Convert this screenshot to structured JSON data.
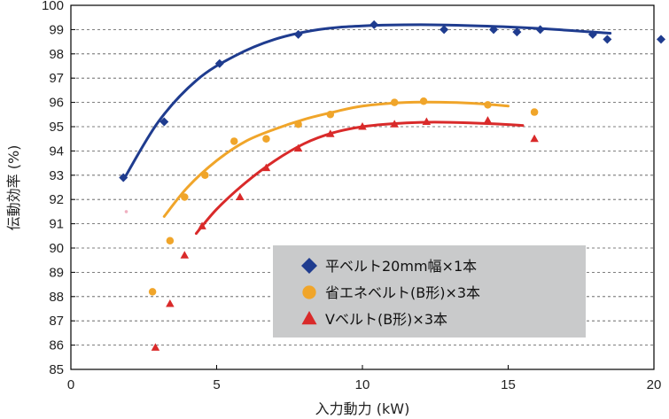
{
  "chart_data": {
    "type": "scatter",
    "title": "",
    "xlabel": "入力動力 (kW)",
    "ylabel": "伝動効率 (%)",
    "xlim": [
      0,
      20
    ],
    "ylim": [
      85,
      100
    ],
    "xticks": [
      "0",
      "5",
      "10",
      "15",
      "20"
    ],
    "yticks": [
      "85",
      "86",
      "87",
      "88",
      "89",
      "90",
      "91",
      "92",
      "93",
      "94",
      "95",
      "96",
      "97",
      "98",
      "99",
      "100"
    ],
    "grid": "horizontal dashed",
    "legend_position": "center-right",
    "series": [
      {
        "name": "平ベルト20mm幅×1本",
        "marker": "diamond",
        "color": "#1f3c8f",
        "points": [
          [
            1.8,
            92.9
          ],
          [
            3.2,
            95.2
          ],
          [
            5.1,
            97.6
          ],
          [
            7.8,
            98.8
          ],
          [
            10.4,
            99.2
          ],
          [
            12.8,
            99.0
          ],
          [
            14.5,
            99.0
          ],
          [
            15.3,
            98.9
          ],
          [
            16.1,
            99.0
          ],
          [
            17.9,
            98.8
          ],
          [
            18.4,
            98.6
          ],
          [
            20.3,
            98.6
          ]
        ],
        "fit": [
          [
            1.8,
            92.8
          ],
          [
            3.0,
            95.2
          ],
          [
            4.3,
            96.9
          ],
          [
            5.6,
            97.9
          ],
          [
            7.0,
            98.6
          ],
          [
            8.5,
            99.0
          ],
          [
            10.0,
            99.15
          ],
          [
            12.0,
            99.2
          ],
          [
            14.0,
            99.15
          ],
          [
            16.0,
            99.05
          ],
          [
            18.5,
            98.85
          ]
        ]
      },
      {
        "name": "省エネベルト(B形)×3本",
        "marker": "circle",
        "color": "#f0a52a",
        "points": [
          [
            2.8,
            88.2
          ],
          [
            3.4,
            90.3
          ],
          [
            3.9,
            92.1
          ],
          [
            4.6,
            93.0
          ],
          [
            5.6,
            94.4
          ],
          [
            6.7,
            94.5
          ],
          [
            7.8,
            95.1
          ],
          [
            8.9,
            95.5
          ],
          [
            11.1,
            96.0
          ],
          [
            12.1,
            96.05
          ],
          [
            14.3,
            95.9
          ],
          [
            15.9,
            95.6
          ]
        ],
        "fit": [
          [
            3.2,
            91.3
          ],
          [
            4.0,
            92.5
          ],
          [
            5.0,
            93.6
          ],
          [
            6.0,
            94.4
          ],
          [
            7.0,
            94.9
          ],
          [
            8.0,
            95.3
          ],
          [
            9.0,
            95.6
          ],
          [
            10.0,
            95.85
          ],
          [
            11.5,
            96.0
          ],
          [
            13.0,
            96.0
          ],
          [
            14.0,
            95.95
          ],
          [
            15.0,
            95.85
          ]
        ]
      },
      {
        "name": "Vベルト(B形)×3本",
        "marker": "triangle",
        "color": "#d92a2a",
        "points": [
          [
            2.9,
            85.9
          ],
          [
            3.4,
            87.7
          ],
          [
            3.9,
            89.7
          ],
          [
            4.5,
            90.9
          ],
          [
            5.8,
            92.1
          ],
          [
            6.7,
            93.3
          ],
          [
            7.8,
            94.1
          ],
          [
            8.9,
            94.7
          ],
          [
            10.0,
            95.0
          ],
          [
            11.1,
            95.1
          ],
          [
            12.2,
            95.2
          ],
          [
            14.3,
            95.25
          ],
          [
            15.9,
            94.5
          ]
        ],
        "fit": [
          [
            4.3,
            90.6
          ],
          [
            5.0,
            91.6
          ],
          [
            6.0,
            92.7
          ],
          [
            7.0,
            93.6
          ],
          [
            8.0,
            94.3
          ],
          [
            9.0,
            94.75
          ],
          [
            10.0,
            95.0
          ],
          [
            11.0,
            95.12
          ],
          [
            12.0,
            95.18
          ],
          [
            13.0,
            95.18
          ],
          [
            14.5,
            95.12
          ],
          [
            15.5,
            95.05
          ]
        ]
      }
    ],
    "stray_points": [
      {
        "color": "#f0b0c0",
        "points": [
          [
            1.9,
            91.5
          ]
        ]
      }
    ],
    "legend": {
      "entries": [
        "平ベルト20mm幅×1本",
        "省エネベルト(B形)×3本",
        "Vベルト(B形)×3本"
      ]
    }
  }
}
